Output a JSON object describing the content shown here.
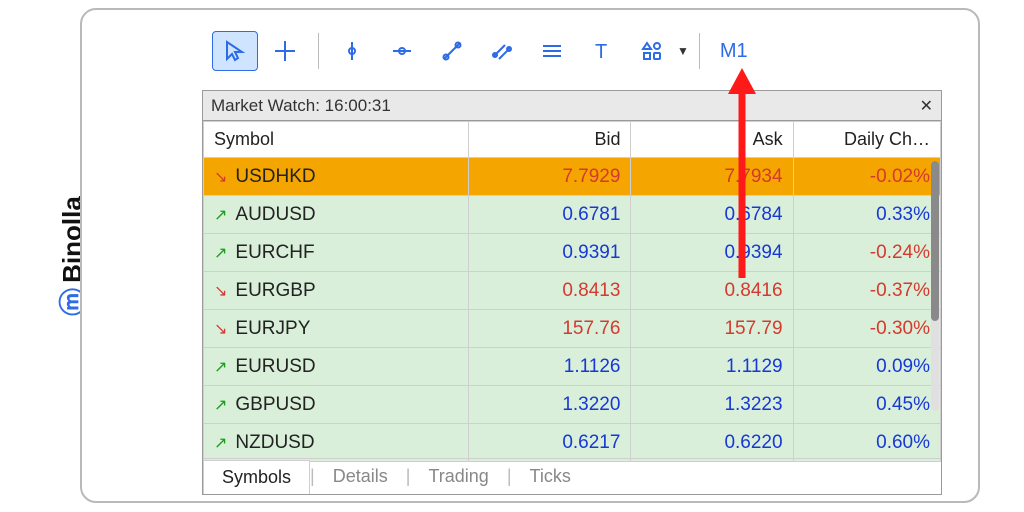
{
  "brand": {
    "name": "Binolla"
  },
  "toolbar": {
    "timeframe": "M1",
    "icons": [
      "cursor",
      "crosshair",
      "vline",
      "hline",
      "trendline",
      "channel",
      "equidistant",
      "text",
      "shapes"
    ]
  },
  "panel": {
    "title": "Market Watch: 16:00:31",
    "columns": [
      "Symbol",
      "Bid",
      "Ask",
      "Daily Ch…"
    ],
    "rows": [
      {
        "dir": "down",
        "hl": true,
        "sym": "USDHKD",
        "bid": "7.7929",
        "ask": "7.7934",
        "chg": "-0.02%",
        "chgNeg": true
      },
      {
        "dir": "up",
        "sym": "AUDUSD",
        "bid": "0.6781",
        "ask": "0.6784",
        "chg": "0.33%",
        "chgNeg": false
      },
      {
        "dir": "up",
        "sym": "EURCHF",
        "bid": "0.9391",
        "ask": "0.9394",
        "chg": "-0.24%",
        "chgNeg": true
      },
      {
        "dir": "down",
        "sym": "EURGBP",
        "bid": "0.8413",
        "ask": "0.8416",
        "chg": "-0.37%",
        "chgNeg": true
      },
      {
        "dir": "down",
        "sym": "EURJPY",
        "bid": "157.76",
        "ask": "157.79",
        "chg": "-0.30%",
        "chgNeg": true
      },
      {
        "dir": "up",
        "sym": "EURUSD",
        "bid": "1.1126",
        "ask": "1.1129",
        "chg": "0.09%",
        "chgNeg": false
      },
      {
        "dir": "up",
        "sym": "GBPUSD",
        "bid": "1.3220",
        "ask": "1.3223",
        "chg": "0.45%",
        "chgNeg": false
      },
      {
        "dir": "up",
        "sym": "NZDUSD",
        "bid": "0.6217",
        "ask": "0.6220",
        "chg": "0.60%",
        "chgNeg": false
      }
    ],
    "tabs": [
      "Symbols",
      "Details",
      "Trading",
      "Ticks"
    ],
    "activeTab": 0
  },
  "colors": {
    "accent": "#2e6be6",
    "up": "#18a018",
    "down": "#d43a2f",
    "rowBg": "#d9efd9",
    "highlight": "#f5a500",
    "valBlue": "#1638d6"
  }
}
